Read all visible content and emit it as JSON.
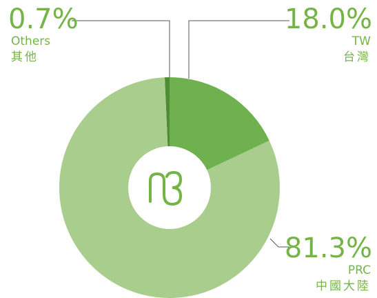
{
  "chart_data": {
    "type": "donut",
    "categories": [
      "Others",
      "TW",
      "PRC"
    ],
    "categories_zh": [
      "其他",
      "台灣",
      "中國大陸"
    ],
    "values": [
      0.7,
      18.0,
      81.3
    ],
    "value_labels": [
      "0.7%",
      "18.0%",
      "81.3%"
    ],
    "colors": [
      "#4f8c36",
      "#6fb04f",
      "#a8cd8c"
    ],
    "label_color": "#74b446"
  }
}
